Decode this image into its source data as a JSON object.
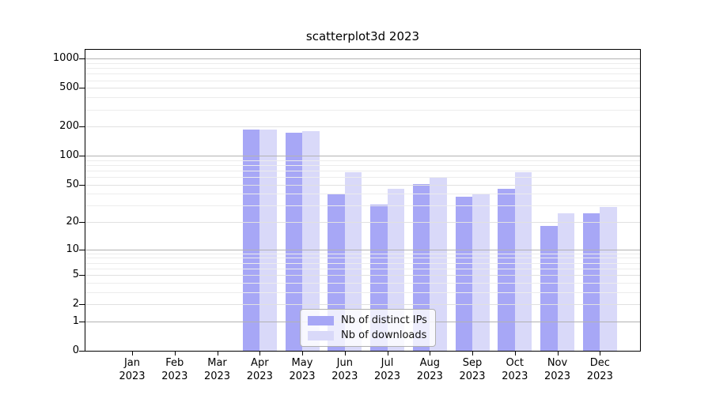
{
  "chart_data": {
    "type": "bar",
    "title": "scatterplot3d 2023",
    "categories": [
      "Jan 2023",
      "Feb 2023",
      "Mar 2023",
      "Apr 2023",
      "May 2023",
      "Jun 2023",
      "Jul 2023",
      "Aug 2023",
      "Sep 2023",
      "Oct 2023",
      "Nov 2023",
      "Dec 2023"
    ],
    "series": [
      {
        "name": "Nb of distinct IPs",
        "color": "#a7a7f6",
        "values": [
          0,
          0,
          0,
          187,
          172,
          40,
          31,
          51,
          37,
          45,
          18,
          25
        ]
      },
      {
        "name": "Nb of downloads",
        "color": "#d9d9f9",
        "values": [
          0,
          0,
          0,
          186,
          178,
          67,
          45,
          60,
          40,
          67,
          25,
          29
        ]
      }
    ],
    "y_axis": {
      "scale": "log10(value+1)",
      "ticks": [
        0,
        1,
        2,
        5,
        10,
        20,
        50,
        100,
        200,
        500,
        1000
      ],
      "minor_gridlines": [
        3,
        4,
        6,
        7,
        8,
        9,
        30,
        40,
        60,
        70,
        80,
        90,
        300,
        400,
        600,
        700,
        800,
        900
      ],
      "range_max": 1225
    },
    "legend_position": "bottom-center-inside",
    "grid": true
  },
  "colors": {
    "bar_distinct_ips": "#a7a7f6",
    "bar_downloads": "#d9d9f9",
    "grid_minor": "#ececec",
    "grid_major": "#e1e1e1",
    "grid_decade": "#b2b2b2",
    "axis_line": "#000000",
    "text": "#000000",
    "legend_border": "#b0b0b0"
  }
}
